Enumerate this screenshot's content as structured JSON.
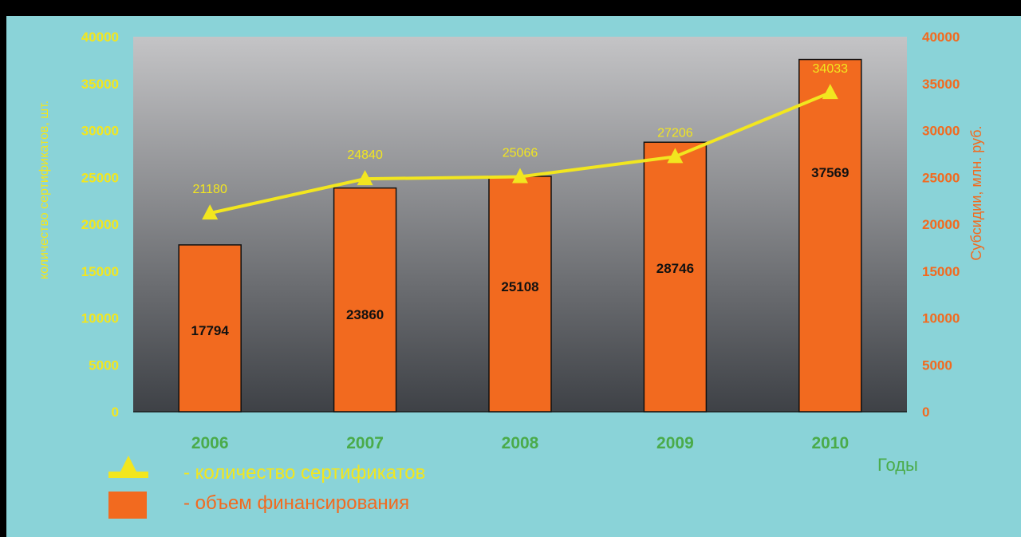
{
  "chart_data": {
    "type": "bar",
    "categories": [
      "2006",
      "2007",
      "2008",
      "2009",
      "2010"
    ],
    "series": [
      {
        "name": "- объем финансирования",
        "kind": "bar",
        "axis": "right",
        "color": "#f26a1f",
        "values": [
          17794,
          23860,
          25108,
          28746,
          37569
        ]
      },
      {
        "name": "- количество сертификатов",
        "kind": "line",
        "axis": "left",
        "color": "#f2e61f",
        "values": [
          21180,
          24840,
          25066,
          27206,
          34033
        ]
      }
    ],
    "bar_labels": [
      "17794",
      "23860",
      "25108",
      "28746",
      "37569"
    ],
    "line_labels": [
      "21180",
      "24840",
      "25066",
      "27206",
      "34033"
    ],
    "xlabel": "Годы",
    "ylabel_left": "количество сертификатов, шт.",
    "ylabel_right": "Субсидии, млн. руб.",
    "ylim": [
      0,
      40000
    ],
    "yticks": [
      "0",
      "5000",
      "10000",
      "15000",
      "20000",
      "25000",
      "30000",
      "35000",
      "40000"
    ],
    "legend_position": "bottom-left",
    "colors": {
      "background": "#8ad3d8",
      "plot_top": "#c4c4c6",
      "plot_bottom": "#3e4146",
      "bar": "#f26a1f",
      "line": "#f2e61f",
      "left_axis": "#f2e61f",
      "right_axis": "#f26a1f",
      "category_text": "#4aab4a",
      "xlabel_text": "#4aab4a"
    }
  }
}
